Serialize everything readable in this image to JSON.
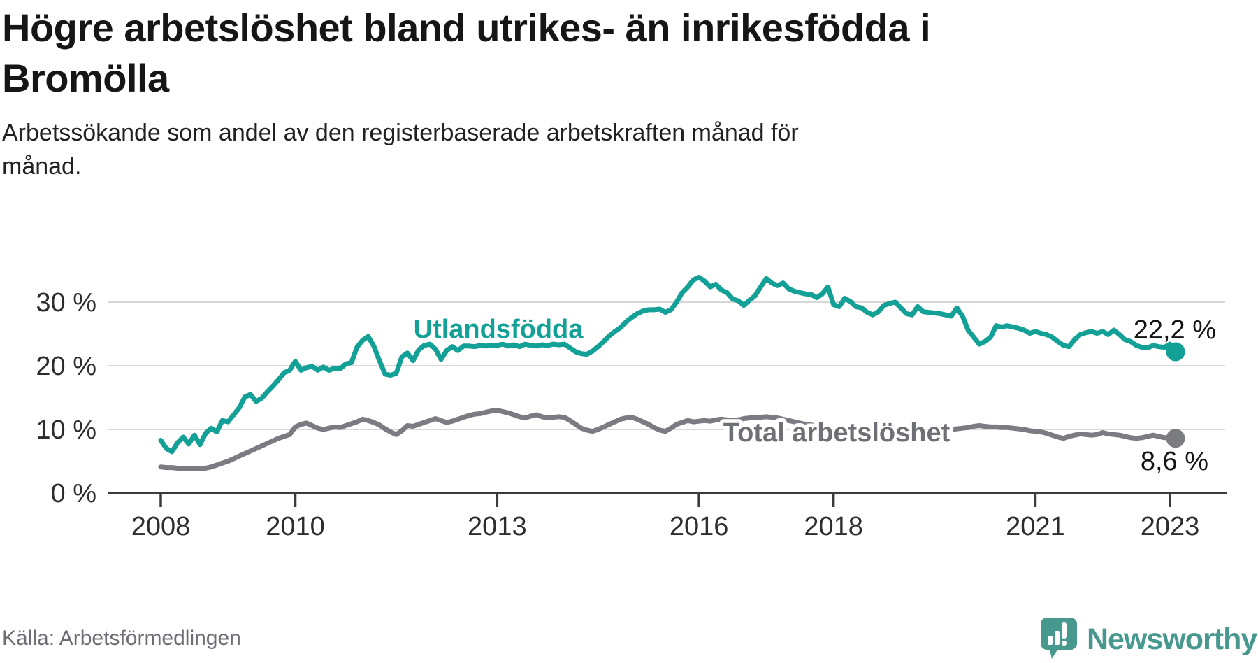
{
  "header": {
    "title": "Högre arbetslöshet bland utrikes- än inrikesfödda i Bromölla",
    "title_lines": [
      "Högre arbetslöshet bland utrikes- än inrikesfödda i",
      "Bromölla"
    ],
    "subtitle": "Arbetssökande som andel av den registerbaserade arbetskraften månad för månad.",
    "subtitle_lines": [
      "Arbetssökande som andel av den registerbaserade arbetskraften månad för",
      "månad."
    ]
  },
  "chart_data": {
    "type": "line",
    "title": "Högre arbetslöshet bland utrikes- än inrikesfödda i Bromölla",
    "subtitle": "Arbetssökande som andel av den registerbaserade arbetskraften månad för månad.",
    "source": "Källa: Arbetsförmedlingen",
    "unit": "percent",
    "frequency": "monthly",
    "period_start": "2008-01",
    "period_end": "2023-02",
    "ylim": [
      0,
      36
    ],
    "grid": true,
    "legend_position": "inline-labels",
    "y_ticks": [
      {
        "label": "30 %",
        "value": 30
      },
      {
        "label": "20 %",
        "value": 20
      },
      {
        "label": "10 %",
        "value": 10
      },
      {
        "label": "0 %",
        "value": 0
      }
    ],
    "x_ticks": [
      {
        "label": "2008",
        "month_index": 0
      },
      {
        "label": "2010",
        "month_index": 24
      },
      {
        "label": "2013",
        "month_index": 60
      },
      {
        "label": "2016",
        "month_index": 96
      },
      {
        "label": "2018",
        "month_index": 120
      },
      {
        "label": "2021",
        "month_index": 156
      },
      {
        "label": "2023",
        "month_index": 180
      }
    ],
    "series": [
      {
        "name": "Utlandsfödda",
        "color": "#13A096",
        "end_label": "22,2 %",
        "end_value": 22.2,
        "values": [
          8.3,
          7.0,
          6.5,
          7.9,
          8.8,
          7.7,
          9.1,
          7.6,
          9.4,
          10.2,
          9.6,
          11.4,
          11.2,
          12.3,
          13.4,
          15.1,
          15.5,
          14.4,
          14.9,
          15.9,
          16.8,
          17.8,
          18.9,
          19.3,
          20.7,
          19.3,
          19.7,
          19.9,
          19.3,
          19.8,
          19.3,
          19.6,
          19.5,
          20.3,
          20.5,
          22.9,
          24.0,
          24.6,
          23.1,
          20.8,
          18.7,
          18.5,
          18.8,
          21.4,
          22.0,
          20.8,
          22.5,
          23.2,
          23.4,
          22.6,
          21.0,
          22.4,
          23.0,
          22.4,
          23.1,
          23.1,
          23.0,
          23.2,
          23.1,
          23.2,
          23.2,
          23.4,
          23.1,
          23.3,
          23.0,
          23.4,
          23.2,
          23.1,
          23.3,
          23.2,
          23.4,
          23.3,
          23.4,
          22.8,
          22.2,
          21.9,
          21.8,
          22.3,
          23.0,
          23.8,
          24.7,
          25.4,
          26.0,
          26.9,
          27.6,
          28.2,
          28.6,
          28.8,
          28.8,
          28.9,
          28.4,
          28.8,
          30.0,
          31.5,
          32.4,
          33.5,
          33.9,
          33.3,
          32.4,
          32.8,
          31.9,
          31.5,
          30.5,
          30.2,
          29.5,
          30.3,
          31.0,
          32.4,
          33.7,
          33.0,
          32.6,
          33.0,
          32.1,
          31.7,
          31.5,
          31.3,
          31.2,
          30.7,
          31.3,
          32.4,
          29.6,
          29.3,
          30.6,
          30.1,
          29.3,
          29.1,
          28.4,
          28.0,
          28.5,
          29.5,
          29.8,
          30.0,
          29.1,
          28.2,
          28.0,
          29.3,
          28.5,
          28.4,
          28.3,
          28.2,
          28.0,
          27.8,
          29.1,
          27.8,
          25.6,
          24.5,
          23.4,
          23.8,
          24.5,
          26.3,
          26.1,
          26.3,
          26.1,
          25.9,
          25.6,
          25.1,
          25.4,
          25.1,
          24.9,
          24.5,
          23.8,
          23.2,
          23.0,
          24.1,
          24.9,
          25.2,
          25.4,
          25.1,
          25.4,
          24.9,
          25.6,
          24.9,
          24.1,
          23.8,
          23.2,
          22.9,
          22.8,
          23.2,
          23.0,
          22.9,
          23.4,
          22.2
        ]
      },
      {
        "name": "Total arbetslöshet",
        "color": "#7B7B82",
        "end_label": "8,6 %",
        "end_value": 8.6,
        "values": [
          4.1,
          4.0,
          4.0,
          3.9,
          3.9,
          3.8,
          3.8,
          3.8,
          3.9,
          4.1,
          4.4,
          4.7,
          5.0,
          5.4,
          5.8,
          6.2,
          6.6,
          7.0,
          7.4,
          7.8,
          8.2,
          8.6,
          8.9,
          9.2,
          10.4,
          10.8,
          11.0,
          10.6,
          10.2,
          10.0,
          10.2,
          10.4,
          10.3,
          10.6,
          10.9,
          11.2,
          11.6,
          11.4,
          11.1,
          10.7,
          10.1,
          9.6,
          9.2,
          9.8,
          10.6,
          10.5,
          10.8,
          11.1,
          11.4,
          11.7,
          11.4,
          11.1,
          11.3,
          11.6,
          11.9,
          12.2,
          12.4,
          12.5,
          12.7,
          12.9,
          13.0,
          12.8,
          12.6,
          12.3,
          12.0,
          11.8,
          12.1,
          12.3,
          12.0,
          11.8,
          11.9,
          12.0,
          11.9,
          11.4,
          10.8,
          10.2,
          9.9,
          9.7,
          10.0,
          10.4,
          10.8,
          11.2,
          11.6,
          11.8,
          11.9,
          11.6,
          11.2,
          10.8,
          10.3,
          9.9,
          9.7,
          10.2,
          10.8,
          11.1,
          11.4,
          11.2,
          11.3,
          11.4,
          11.3,
          11.5,
          11.6,
          11.5,
          11.4,
          11.5,
          11.7,
          11.8,
          11.9,
          11.9,
          12.0,
          11.9,
          11.8,
          11.6,
          11.4,
          11.2,
          11.0,
          10.8,
          10.7,
          10.5,
          10.4,
          10.3,
          10.1,
          10.0,
          9.9,
          9.8,
          9.7,
          9.6,
          9.5,
          9.5,
          9.4,
          9.4,
          9.3,
          9.3,
          9.2,
          9.3,
          9.4,
          9.4,
          9.5,
          9.6,
          9.7,
          9.8,
          9.9,
          10.0,
          10.1,
          10.2,
          10.3,
          10.5,
          10.6,
          10.5,
          10.4,
          10.4,
          10.3,
          10.3,
          10.2,
          10.1,
          10.0,
          9.8,
          9.7,
          9.6,
          9.4,
          9.1,
          8.8,
          8.6,
          8.9,
          9.1,
          9.3,
          9.2,
          9.1,
          9.2,
          9.5,
          9.3,
          9.2,
          9.1,
          8.9,
          8.7,
          8.6,
          8.7,
          8.9,
          9.1,
          8.9,
          8.7,
          8.7,
          8.6
        ]
      }
    ]
  },
  "footer": {
    "source": "Källa: Arbetsförmedlingen",
    "logo_text": "Newsworthy"
  },
  "colors": {
    "teal": "#13A096",
    "gray": "#7B7B82",
    "gray_label": "#6F6F76",
    "grid": "#D8D8D8",
    "axis": "#3B3B3B",
    "logo": "#47988F"
  }
}
